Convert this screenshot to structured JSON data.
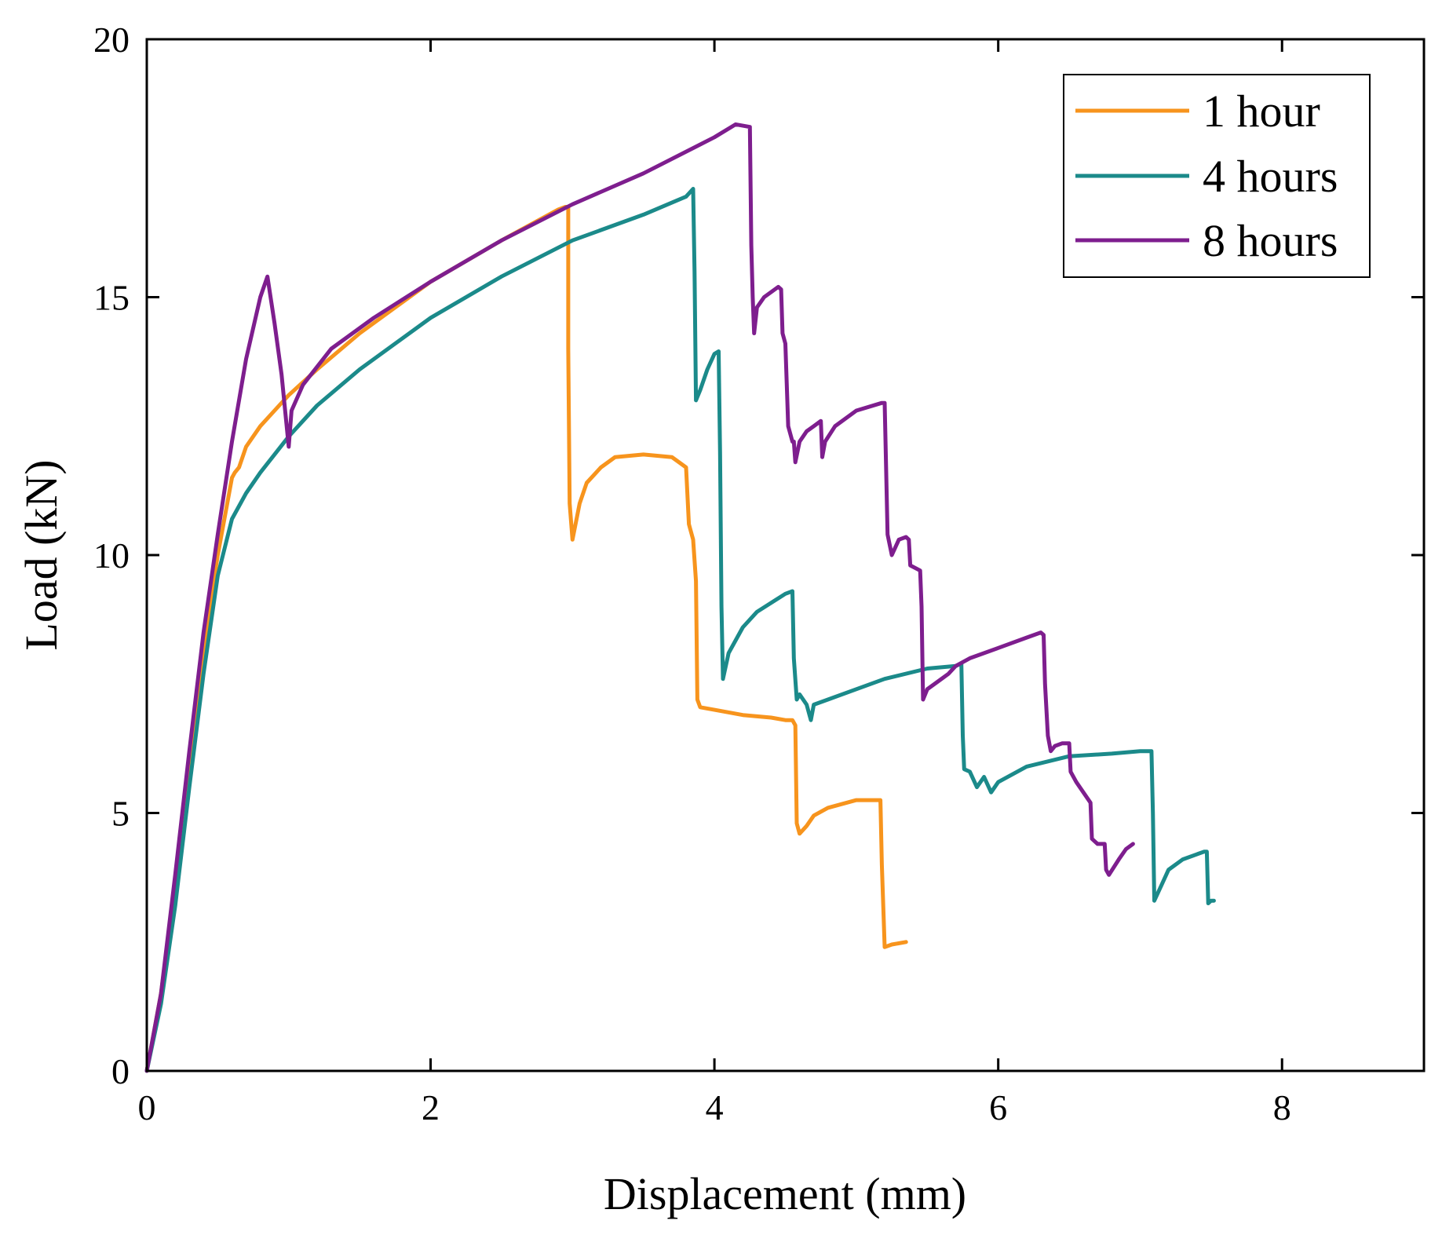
{
  "chart_data": {
    "type": "line",
    "title": "",
    "xlabel": "Displacement (mm)",
    "ylabel": "Load (kN)",
    "xlim": [
      0,
      9
    ],
    "ylim": [
      0,
      20
    ],
    "xticks": [
      0,
      2,
      4,
      6,
      8
    ],
    "xtick_labels": [
      "0",
      "2",
      "4",
      "6",
      "8"
    ],
    "yticks": [
      0,
      5,
      10,
      15,
      20
    ],
    "ytick_labels": [
      "0",
      "5",
      "10",
      "15",
      "20"
    ],
    "grid": false,
    "legend_position": "top-right",
    "series": [
      {
        "name": "1 hour",
        "color": "#F7941D",
        "points": [
          [
            0,
            0
          ],
          [
            0.1,
            1.5
          ],
          [
            0.2,
            3.6
          ],
          [
            0.3,
            6.0
          ],
          [
            0.4,
            8.2
          ],
          [
            0.5,
            10.0
          ],
          [
            0.58,
            11.2
          ],
          [
            0.6,
            11.5
          ],
          [
            0.62,
            11.6
          ],
          [
            0.65,
            11.7
          ],
          [
            0.7,
            12.1
          ],
          [
            0.8,
            12.5
          ],
          [
            0.9,
            12.8
          ],
          [
            1.0,
            13.1
          ],
          [
            1.2,
            13.6
          ],
          [
            1.5,
            14.3
          ],
          [
            2.0,
            15.3
          ],
          [
            2.5,
            16.1
          ],
          [
            2.9,
            16.7
          ],
          [
            2.95,
            16.75
          ],
          [
            2.97,
            16.75
          ],
          [
            2.97,
            14.0
          ],
          [
            2.98,
            11.0
          ],
          [
            3.0,
            10.3
          ],
          [
            3.05,
            11.0
          ],
          [
            3.1,
            11.4
          ],
          [
            3.2,
            11.7
          ],
          [
            3.3,
            11.9
          ],
          [
            3.5,
            11.95
          ],
          [
            3.7,
            11.9
          ],
          [
            3.75,
            11.8
          ],
          [
            3.8,
            11.7
          ],
          [
            3.82,
            10.6
          ],
          [
            3.85,
            10.3
          ],
          [
            3.87,
            9.5
          ],
          [
            3.88,
            7.2
          ],
          [
            3.9,
            7.05
          ],
          [
            4.0,
            7.0
          ],
          [
            4.2,
            6.9
          ],
          [
            4.4,
            6.85
          ],
          [
            4.5,
            6.8
          ],
          [
            4.55,
            6.8
          ],
          [
            4.57,
            6.7
          ],
          [
            4.58,
            4.8
          ],
          [
            4.6,
            4.6
          ],
          [
            4.65,
            4.75
          ],
          [
            4.7,
            4.95
          ],
          [
            4.8,
            5.1
          ],
          [
            5.0,
            5.25
          ],
          [
            5.15,
            5.25
          ],
          [
            5.17,
            5.25
          ],
          [
            5.18,
            4.0
          ],
          [
            5.2,
            2.4
          ],
          [
            5.25,
            2.45
          ],
          [
            5.35,
            2.5
          ]
        ]
      },
      {
        "name": "4 hours",
        "color": "#1B8A8A",
        "points": [
          [
            0,
            0
          ],
          [
            0.1,
            1.3
          ],
          [
            0.2,
            3.2
          ],
          [
            0.3,
            5.5
          ],
          [
            0.4,
            7.7
          ],
          [
            0.5,
            9.6
          ],
          [
            0.6,
            10.7
          ],
          [
            0.7,
            11.2
          ],
          [
            0.8,
            11.6
          ],
          [
            1.0,
            12.3
          ],
          [
            1.2,
            12.9
          ],
          [
            1.5,
            13.6
          ],
          [
            2.0,
            14.6
          ],
          [
            2.5,
            15.4
          ],
          [
            3.0,
            16.1
          ],
          [
            3.5,
            16.6
          ],
          [
            3.8,
            16.95
          ],
          [
            3.85,
            17.1
          ],
          [
            3.86,
            15.5
          ],
          [
            3.87,
            13.0
          ],
          [
            3.9,
            13.2
          ],
          [
            3.95,
            13.6
          ],
          [
            4.0,
            13.9
          ],
          [
            4.03,
            13.95
          ],
          [
            4.04,
            12.0
          ],
          [
            4.05,
            9.0
          ],
          [
            4.06,
            7.6
          ],
          [
            4.1,
            8.1
          ],
          [
            4.2,
            8.6
          ],
          [
            4.3,
            8.9
          ],
          [
            4.5,
            9.25
          ],
          [
            4.55,
            9.3
          ],
          [
            4.56,
            8.0
          ],
          [
            4.58,
            7.2
          ],
          [
            4.6,
            7.3
          ],
          [
            4.65,
            7.1
          ],
          [
            4.68,
            6.8
          ],
          [
            4.7,
            7.1
          ],
          [
            4.8,
            7.2
          ],
          [
            5.0,
            7.4
          ],
          [
            5.2,
            7.6
          ],
          [
            5.5,
            7.8
          ],
          [
            5.7,
            7.85
          ],
          [
            5.74,
            7.9
          ],
          [
            5.75,
            6.5
          ],
          [
            5.76,
            5.85
          ],
          [
            5.8,
            5.8
          ],
          [
            5.85,
            5.5
          ],
          [
            5.9,
            5.7
          ],
          [
            5.95,
            5.4
          ],
          [
            6.0,
            5.6
          ],
          [
            6.2,
            5.9
          ],
          [
            6.5,
            6.1
          ],
          [
            6.8,
            6.15
          ],
          [
            7.0,
            6.2
          ],
          [
            7.08,
            6.2
          ],
          [
            7.09,
            5.0
          ],
          [
            7.1,
            3.3
          ],
          [
            7.15,
            3.6
          ],
          [
            7.2,
            3.9
          ],
          [
            7.3,
            4.1
          ],
          [
            7.45,
            4.25
          ],
          [
            7.47,
            4.25
          ],
          [
            7.48,
            3.25
          ],
          [
            7.5,
            3.3
          ],
          [
            7.52,
            3.3
          ]
        ]
      },
      {
        "name": "8 hours",
        "color": "#7E1E8E",
        "points": [
          [
            0,
            0
          ],
          [
            0.1,
            1.5
          ],
          [
            0.2,
            3.8
          ],
          [
            0.3,
            6.2
          ],
          [
            0.4,
            8.5
          ],
          [
            0.5,
            10.4
          ],
          [
            0.6,
            12.2
          ],
          [
            0.7,
            13.8
          ],
          [
            0.8,
            15.0
          ],
          [
            0.85,
            15.4
          ],
          [
            0.9,
            14.5
          ],
          [
            0.95,
            13.5
          ],
          [
            1.0,
            12.1
          ],
          [
            1.02,
            12.8
          ],
          [
            1.1,
            13.3
          ],
          [
            1.3,
            14.0
          ],
          [
            1.6,
            14.6
          ],
          [
            2.0,
            15.3
          ],
          [
            2.5,
            16.1
          ],
          [
            3.0,
            16.8
          ],
          [
            3.5,
            17.4
          ],
          [
            4.0,
            18.1
          ],
          [
            4.15,
            18.35
          ],
          [
            4.25,
            18.3
          ],
          [
            4.26,
            16.0
          ],
          [
            4.27,
            15.0
          ],
          [
            4.28,
            14.3
          ],
          [
            4.3,
            14.8
          ],
          [
            4.35,
            15.0
          ],
          [
            4.45,
            15.2
          ],
          [
            4.47,
            15.15
          ],
          [
            4.48,
            14.3
          ],
          [
            4.5,
            14.1
          ],
          [
            4.52,
            12.5
          ],
          [
            4.55,
            12.2
          ],
          [
            4.56,
            12.2
          ],
          [
            4.57,
            11.8
          ],
          [
            4.6,
            12.2
          ],
          [
            4.65,
            12.4
          ],
          [
            4.7,
            12.5
          ],
          [
            4.75,
            12.6
          ],
          [
            4.76,
            11.9
          ],
          [
            4.78,
            12.2
          ],
          [
            4.85,
            12.5
          ],
          [
            5.0,
            12.8
          ],
          [
            5.18,
            12.95
          ],
          [
            5.2,
            12.95
          ],
          [
            5.22,
            10.4
          ],
          [
            5.25,
            10.0
          ],
          [
            5.3,
            10.3
          ],
          [
            5.35,
            10.35
          ],
          [
            5.37,
            10.3
          ],
          [
            5.38,
            9.8
          ],
          [
            5.45,
            9.7
          ],
          [
            5.46,
            9.0
          ],
          [
            5.47,
            7.2
          ],
          [
            5.5,
            7.4
          ],
          [
            5.55,
            7.5
          ],
          [
            5.6,
            7.6
          ],
          [
            5.65,
            7.7
          ],
          [
            5.7,
            7.85
          ],
          [
            5.8,
            8.0
          ],
          [
            6.0,
            8.2
          ],
          [
            6.2,
            8.4
          ],
          [
            6.3,
            8.5
          ],
          [
            6.32,
            8.45
          ],
          [
            6.33,
            7.5
          ],
          [
            6.35,
            6.5
          ],
          [
            6.37,
            6.2
          ],
          [
            6.4,
            6.3
          ],
          [
            6.45,
            6.35
          ],
          [
            6.5,
            6.35
          ],
          [
            6.51,
            5.8
          ],
          [
            6.55,
            5.6
          ],
          [
            6.6,
            5.4
          ],
          [
            6.65,
            5.2
          ],
          [
            6.66,
            4.5
          ],
          [
            6.7,
            4.4
          ],
          [
            6.75,
            4.4
          ],
          [
            6.76,
            3.9
          ],
          [
            6.78,
            3.8
          ],
          [
            6.85,
            4.1
          ],
          [
            6.9,
            4.3
          ],
          [
            6.95,
            4.4
          ]
        ]
      }
    ]
  }
}
